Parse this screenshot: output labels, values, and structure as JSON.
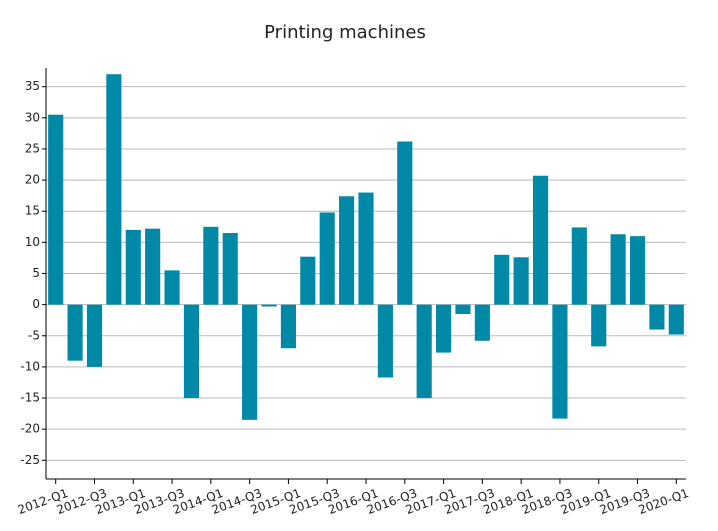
{
  "chart_data": {
    "type": "bar",
    "title": "Printing machines",
    "categories": [
      "2012-Q1",
      null,
      "2012-Q3",
      null,
      "2013-Q1",
      null,
      "2013-Q3",
      null,
      "2014-Q1",
      null,
      "2014-Q3",
      null,
      "2015-Q1",
      null,
      "2015-Q3",
      null,
      "2016-Q1",
      null,
      "2016-Q3",
      null,
      "2017-Q1",
      null,
      "2017-Q3",
      null,
      "2018-Q1",
      null,
      "2018-Q3",
      null,
      "2019-Q1",
      null,
      "2019-Q3",
      null,
      "2020-Q1"
    ],
    "values": [
      30.5,
      -9,
      -10,
      37,
      12,
      12.2,
      5.5,
      -15,
      12.5,
      11.5,
      -18.5,
      -0.3,
      -7,
      7.7,
      14.8,
      17.4,
      18,
      -11.7,
      26.2,
      -15,
      -7.7,
      -1.5,
      -5.8,
      8,
      7.6,
      20.7,
      -18.3,
      12.4,
      -6.7,
      11.3,
      11,
      -4,
      -4.8
    ],
    "color": "#0089a7",
    "ylim": [
      -28,
      38
    ],
    "yticks": [
      -25,
      -20,
      -15,
      -10,
      -5,
      0,
      5,
      10,
      15,
      20,
      25,
      30,
      35
    ],
    "grid": true
  }
}
